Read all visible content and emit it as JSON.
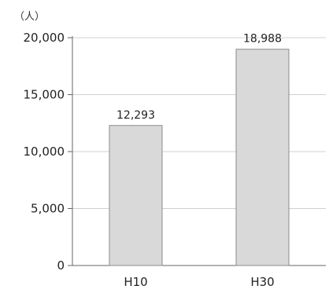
{
  "chart_data": {
    "type": "bar",
    "ylabel": "（人）",
    "xlabel": "",
    "categories": [
      "H10",
      "H30"
    ],
    "values": [
      12293,
      18988
    ],
    "value_labels": [
      "12,293",
      "18,988"
    ],
    "ylim": [
      0,
      20000
    ],
    "yticks": [
      0,
      5000,
      10000,
      15000,
      20000
    ],
    "ytick_labels": [
      "0",
      "5,000",
      "10,000",
      "15,000",
      "20,000"
    ],
    "grid": true,
    "legend": "none",
    "colors": {
      "bar_fill": "#d9d9d9",
      "bar_stroke": "#8c8c8c",
      "grid": "#d0d0d0",
      "axis": "#666666"
    }
  }
}
